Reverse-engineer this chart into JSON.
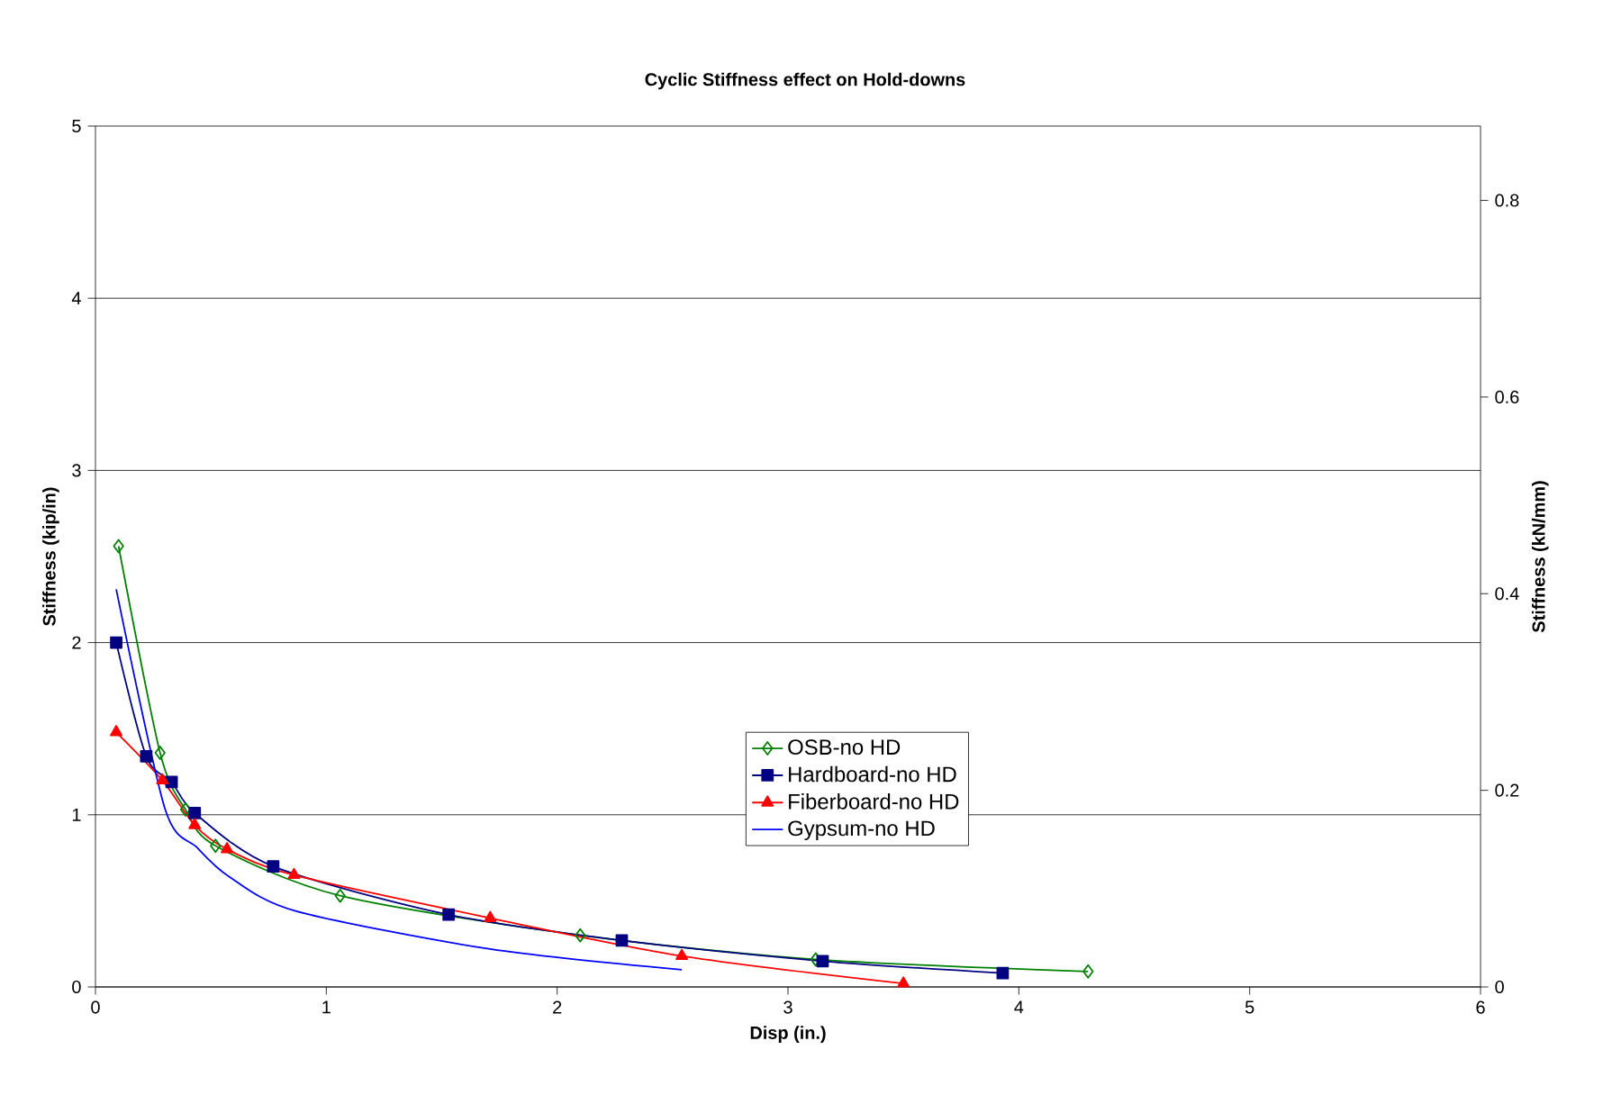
{
  "chart_data": {
    "type": "line",
    "title": "Cyclic Stiffness effect on Hold-downs",
    "xlabel": "Disp (in.)",
    "ylabel": "Stiffness (kip/in)",
    "y2label": "Stiffness (kN/mm)",
    "xlim": [
      0,
      6
    ],
    "xticks": [
      0,
      1,
      2,
      3,
      4,
      5,
      6
    ],
    "ylim": [
      0,
      5
    ],
    "yticks": [
      0,
      1,
      2,
      3,
      4,
      5
    ],
    "y2lim": [
      0,
      0.8756
    ],
    "y2ticks": [
      0,
      0.2,
      0.4,
      0.6,
      0.8
    ],
    "grid": "y",
    "legend": "bottom",
    "series": [
      {
        "name": "OSB-no HD",
        "color": "#008000",
        "marker": "diamond",
        "x": [
          0.1,
          0.28,
          0.39,
          0.52,
          1.06,
          2.1,
          3.12,
          4.3
        ],
        "values": [
          2.56,
          1.36,
          1.03,
          0.82,
          0.53,
          0.3,
          0.16,
          0.09
        ]
      },
      {
        "name": "Hardboard-no HD",
        "color": "#000080",
        "marker": "square",
        "x": [
          0.09,
          0.22,
          0.33,
          0.43,
          0.77,
          1.53,
          2.28,
          3.15,
          3.93
        ],
        "values": [
          2.0,
          1.34,
          1.19,
          1.01,
          0.7,
          0.42,
          0.27,
          0.15,
          0.08
        ]
      },
      {
        "name": "Fiberboard-no HD",
        "color": "#ff0000",
        "marker": "triangle",
        "x": [
          0.09,
          0.29,
          0.43,
          0.57,
          0.86,
          1.71,
          2.54,
          3.5
        ],
        "values": [
          1.48,
          1.2,
          0.94,
          0.8,
          0.65,
          0.4,
          0.18,
          0.02
        ]
      },
      {
        "name": "Gypsum-no HD",
        "color": "#0000ff",
        "marker": "none",
        "x": [
          0.09,
          0.3,
          0.44,
          0.58,
          0.87,
          1.71,
          2.54
        ],
        "values": [
          2.31,
          1.04,
          0.81,
          0.64,
          0.44,
          0.22,
          0.1
        ]
      }
    ]
  }
}
